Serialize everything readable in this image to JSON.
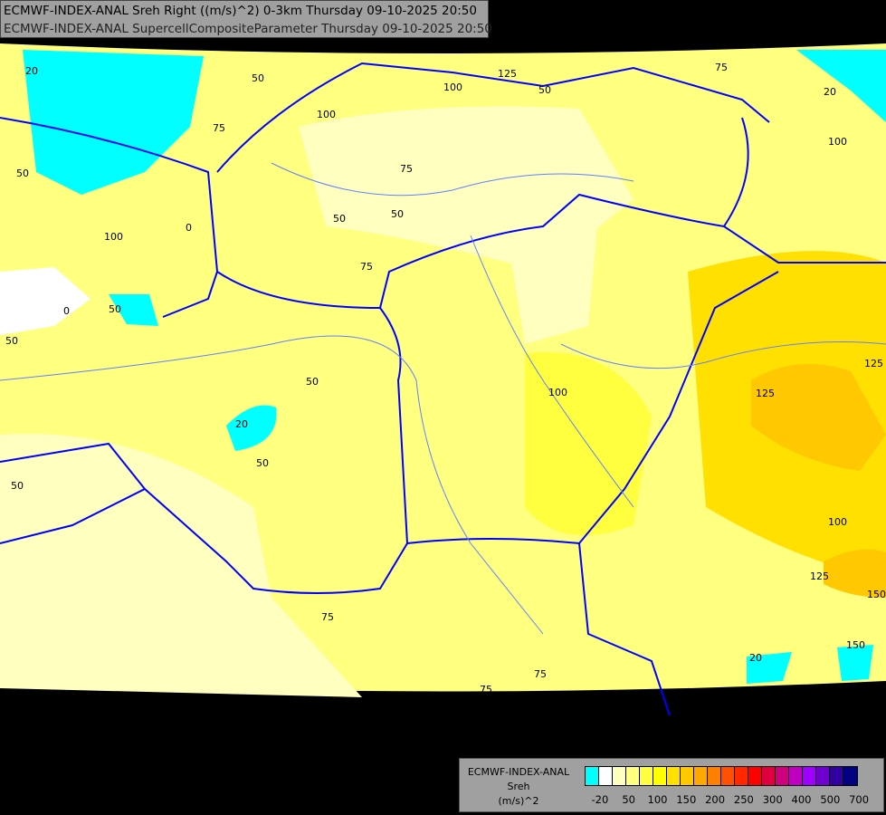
{
  "header": {
    "line1": "ECMWF-INDEX-ANAL Sreh Right ((m/s)^2) 0-3km Thursday 09-10-2025 20:50",
    "line2": "ECMWF-INDEX-ANAL SupercellCompositeParameter Thursday 09-10-2025 20:50"
  },
  "legend": {
    "model": "ECMWF-INDEX-ANAL",
    "parameter": "Sreh",
    "unit": "(m/s)^2",
    "colors": [
      "#00ffff",
      "#ffffff",
      "#ffffc0",
      "#ffff80",
      "#ffff40",
      "#ffff00",
      "#ffe000",
      "#ffc800",
      "#ffa800",
      "#ff8000",
      "#ff5000",
      "#ff2800",
      "#ff0000",
      "#e00040",
      "#d00080",
      "#c000c0",
      "#a000ff",
      "#7000d0",
      "#3000a0",
      "#000080"
    ],
    "ticks": [
      "-20",
      "50",
      "100",
      "150",
      "200",
      "250",
      "300",
      "400",
      "500",
      "700"
    ]
  },
  "map": {
    "colors": {
      "background": "#000000",
      "border": "#0000ff",
      "river": "#6080ff"
    },
    "contour_labels": [
      "20",
      "50",
      "75",
      "100",
      "125",
      "50",
      "100",
      "75",
      "50",
      "50",
      "75",
      "100",
      "0",
      "0",
      "50",
      "50",
      "75",
      "50",
      "20",
      "50",
      "50",
      "100",
      "50",
      "125",
      "125",
      "100",
      "125",
      "150",
      "150",
      "20",
      "75",
      "75",
      "75",
      "100",
      "20"
    ]
  }
}
